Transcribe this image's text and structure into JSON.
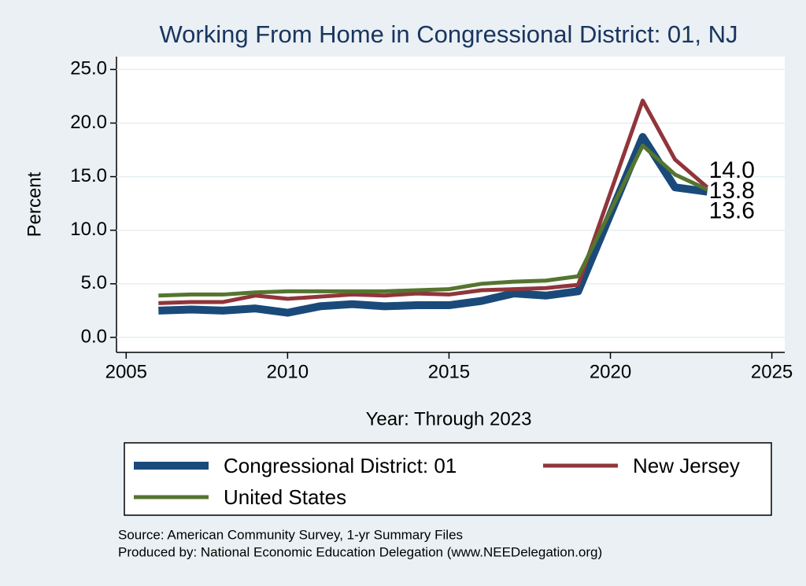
{
  "chart_data": {
    "type": "line",
    "title": "Working From Home in Congressional District: 01, NJ",
    "y_label": "Percent",
    "x_label": "Year: Through 2023",
    "x": [
      2006,
      2007,
      2008,
      2009,
      2010,
      2011,
      2012,
      2013,
      2014,
      2015,
      2016,
      2017,
      2018,
      2019,
      2021,
      2022,
      2023
    ],
    "series": [
      {
        "name": "Congressional District: 01",
        "color": "#1a4a7a",
        "width": 10,
        "values": [
          2.5,
          2.6,
          2.5,
          2.7,
          2.3,
          2.9,
          3.1,
          2.9,
          3.0,
          3.0,
          3.4,
          4.1,
          3.9,
          4.3,
          18.7,
          14.0,
          13.6
        ],
        "value_labels": [
          null,
          null,
          null,
          null,
          null,
          null,
          null,
          null,
          null,
          null,
          null,
          null,
          null,
          null,
          null,
          null,
          "13.6"
        ]
      },
      {
        "name": "New Jersey",
        "color": "#90353b",
        "width": 5,
        "values": [
          3.2,
          3.3,
          3.3,
          3.9,
          3.6,
          3.8,
          4.0,
          3.9,
          4.1,
          4.0,
          4.4,
          4.5,
          4.6,
          4.9,
          22.1,
          16.6,
          14.0
        ],
        "value_labels": [
          null,
          null,
          null,
          null,
          null,
          null,
          null,
          null,
          null,
          null,
          null,
          null,
          null,
          null,
          null,
          null,
          "14.0"
        ]
      },
      {
        "name": "United States",
        "color": "#55752f",
        "width": 5,
        "values": [
          3.9,
          4.0,
          4.0,
          4.2,
          4.3,
          4.3,
          4.3,
          4.3,
          4.4,
          4.5,
          5.0,
          5.2,
          5.3,
          5.7,
          17.9,
          15.2,
          13.8
        ],
        "value_labels": [
          null,
          null,
          null,
          null,
          null,
          null,
          null,
          null,
          null,
          null,
          null,
          null,
          null,
          null,
          null,
          null,
          "13.8"
        ]
      }
    ],
    "xlim": [
      2004.7,
      2025.4
    ],
    "ylim": [
      -1.4,
      26.2
    ],
    "xticks": [
      2005,
      2010,
      2015,
      2020,
      2025
    ],
    "yticks": [
      {
        "value": 0,
        "label": "0.0"
      },
      {
        "value": 5,
        "label": "5.0"
      },
      {
        "value": 10,
        "label": "10.0"
      },
      {
        "value": 15,
        "label": "15.0"
      },
      {
        "value": 20,
        "label": "20.0"
      },
      {
        "value": 25,
        "label": "25.0"
      }
    ],
    "grid": true,
    "legend": "bottom",
    "notes": [
      "Source: American Community Survey, 1-yr Summary Files",
      "Produced by: National Economic Education Delegation (www.NEEDelegation.org)"
    ]
  }
}
